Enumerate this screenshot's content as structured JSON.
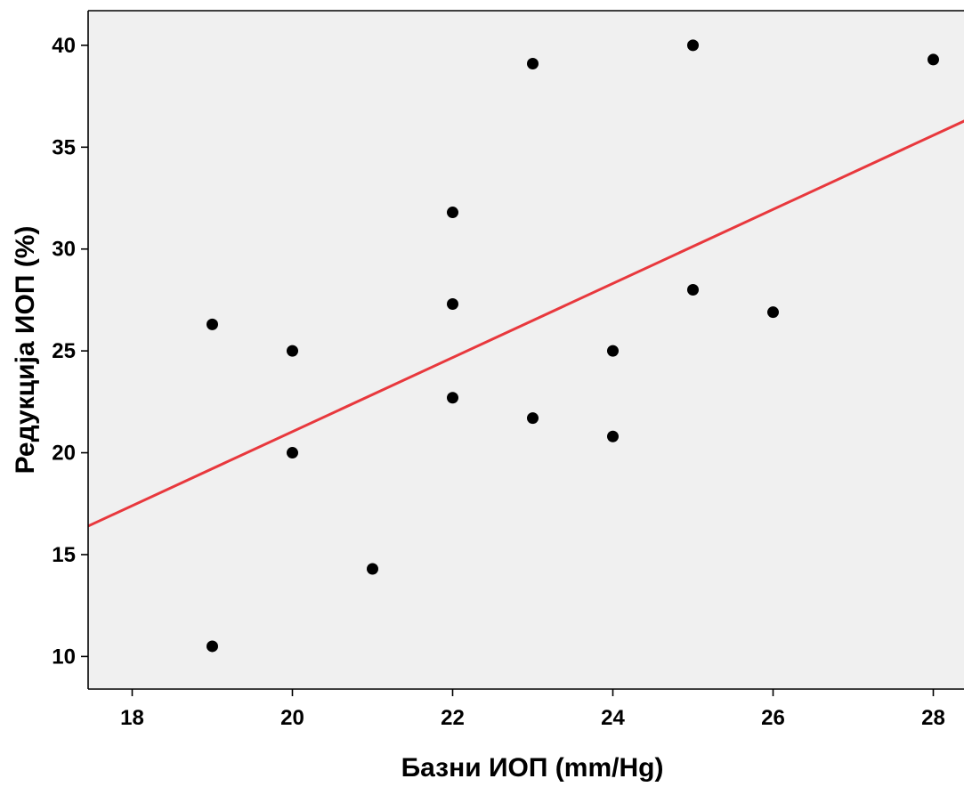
{
  "chart_data": {
    "type": "scatter",
    "title": "",
    "xlabel": "Базни ИОП (mm/Hg)",
    "ylabel": "Редукција ИОП (%)",
    "xlim": [
      17.45,
      28.45
    ],
    "ylim": [
      8.4,
      41.7
    ],
    "xticks": [
      18,
      20,
      22,
      24,
      26,
      28
    ],
    "yticks": [
      10,
      15,
      20,
      25,
      30,
      35,
      40
    ],
    "grid": false,
    "legend": "none",
    "colors": {
      "plot_background": "#f0f0f0",
      "point": "#000000",
      "fit_line": "#e8383d",
      "axis": "#000000"
    },
    "points": [
      {
        "x": 19,
        "y": 26.3
      },
      {
        "x": 19,
        "y": 10.5
      },
      {
        "x": 20,
        "y": 25.0
      },
      {
        "x": 20,
        "y": 20.0
      },
      {
        "x": 21,
        "y": 14.3
      },
      {
        "x": 22,
        "y": 31.8
      },
      {
        "x": 22,
        "y": 27.3
      },
      {
        "x": 22,
        "y": 22.7
      },
      {
        "x": 23,
        "y": 39.1
      },
      {
        "x": 23,
        "y": 21.7
      },
      {
        "x": 24,
        "y": 25.0
      },
      {
        "x": 24,
        "y": 20.8
      },
      {
        "x": 25,
        "y": 40.0
      },
      {
        "x": 25,
        "y": 28.0
      },
      {
        "x": 26,
        "y": 26.9
      },
      {
        "x": 28,
        "y": 39.3
      }
    ],
    "fit_line": {
      "x": [
        17.45,
        28.45
      ],
      "y": [
        16.4,
        36.4
      ]
    }
  }
}
